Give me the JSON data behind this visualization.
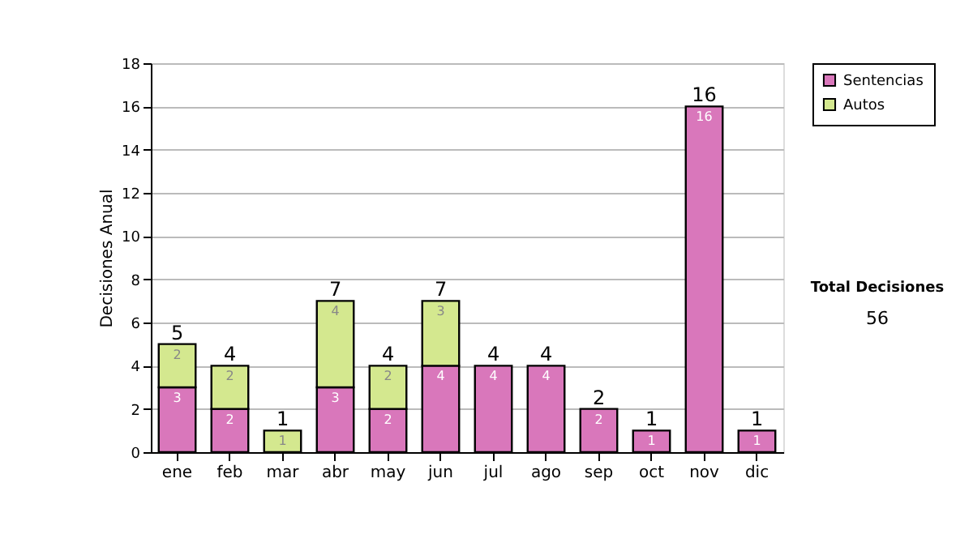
{
  "chart_data": {
    "type": "bar",
    "stacked": true,
    "ylabel": "Decisiones Anual",
    "categories": [
      "ene",
      "feb",
      "mar",
      "abr",
      "may",
      "jun",
      "jul",
      "ago",
      "sep",
      "oct",
      "nov",
      "dic"
    ],
    "series": [
      {
        "name": "Sentencias",
        "color": "#d977bb",
        "values": [
          3,
          2,
          0,
          3,
          2,
          4,
          4,
          4,
          2,
          1,
          16,
          1
        ],
        "value_labels": [
          "3",
          "2",
          null,
          "3",
          "2",
          "4",
          "4",
          "4",
          "2",
          "1",
          "16",
          "1"
        ]
      },
      {
        "name": "Autos",
        "color": "#d4e88f",
        "values": [
          2,
          2,
          1,
          4,
          2,
          3,
          0,
          0,
          0,
          0,
          0,
          0
        ],
        "value_labels": [
          "2",
          "2",
          "1",
          "4",
          "2",
          "3",
          null,
          null,
          null,
          null,
          null,
          null
        ]
      }
    ],
    "totals": [
      "5",
      "4",
      "1",
      "7",
      "4",
      "7",
      "4",
      "4",
      "2",
      "1",
      "16",
      "1"
    ],
    "ylim": [
      0,
      18
    ],
    "yticks": [
      0,
      2,
      4,
      6,
      8,
      10,
      12,
      14,
      16,
      18
    ],
    "grid": "y",
    "legend": "right",
    "annotations": [
      "Total Decisiones",
      "56"
    ]
  }
}
